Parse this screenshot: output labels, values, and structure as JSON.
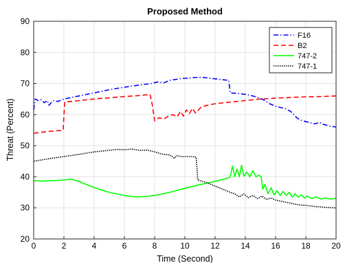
{
  "chart_data": {
    "type": "line",
    "title": "Proposed Method",
    "xlabel": "Time (Second)",
    "ylabel": "Threat (Percent)",
    "xlim": [
      0,
      20
    ],
    "ylim": [
      20,
      90
    ],
    "xticks": [
      "0",
      "2",
      "4",
      "6",
      "8",
      "10",
      "12",
      "14",
      "16",
      "18",
      "20"
    ],
    "yticks": [
      "20",
      "30",
      "40",
      "50",
      "60",
      "70",
      "80",
      "90"
    ],
    "grid": true,
    "legend_position": "top-right",
    "series": [
      {
        "name": "F16",
        "color": "#0000ff",
        "style": "dash-dot",
        "x": [
          0,
          0.1,
          0.3,
          0.5,
          0.7,
          0.9,
          1.0,
          1.3,
          1.6,
          2.0,
          2.5,
          3,
          4,
          5,
          6,
          7,
          7.8,
          8.2,
          8.6,
          9.0,
          9.4,
          9.8,
          10.2,
          10.6,
          11,
          11.5,
          12,
          12.5,
          12.9,
          13.0,
          13.5,
          14,
          14.5,
          15,
          15.3,
          15.6,
          16.0,
          16.3,
          16.6,
          16.8,
          17.0,
          17.2,
          17.4,
          17.6,
          17.8,
          18.2,
          18.6,
          18.9,
          19.2,
          19.6,
          20
        ],
        "values": [
          61.5,
          65,
          64.5,
          64.8,
          63.8,
          64.5,
          63,
          64.5,
          64.2,
          65,
          65.5,
          66,
          67,
          68,
          68.8,
          69.5,
          70,
          70.5,
          70.2,
          71,
          71.3,
          71.6,
          71.7,
          71.9,
          72,
          71.8,
          71.5,
          71.2,
          71,
          67,
          66.8,
          66.5,
          66,
          65.2,
          64.5,
          63.5,
          62.7,
          62.3,
          62,
          61.5,
          61,
          60,
          59,
          58.3,
          58,
          57.5,
          57,
          57.5,
          56.8,
          56.3,
          56
        ]
      },
      {
        "name": "B2",
        "color": "#ff0000",
        "style": "dashed",
        "x": [
          0,
          0.5,
          1,
          1.5,
          1.95,
          2.05,
          3,
          4,
          5,
          6,
          7,
          7.7,
          7.85,
          8.0,
          8.3,
          8.6,
          8.9,
          9.2,
          9.5,
          9.7,
          9.9,
          10.1,
          10.3,
          10.5,
          10.7,
          10.9,
          11.1,
          11.5,
          12,
          13,
          14,
          15,
          16,
          17,
          18,
          19,
          20
        ],
        "values": [
          54,
          54.3,
          54.6,
          54.8,
          55,
          64,
          64.5,
          65,
          65.4,
          65.8,
          66.1,
          66.5,
          63,
          58,
          59,
          58.5,
          59.5,
          60,
          59.3,
          61,
          59.5,
          61.5,
          60.3,
          62,
          60.5,
          61.5,
          62.5,
          63,
          63.5,
          64,
          64.5,
          65,
          65.3,
          65.5,
          65.7,
          65.8,
          66
        ]
      },
      {
        "name": "747-2",
        "color": "#00ff00",
        "style": "solid",
        "x": [
          0,
          0.5,
          1,
          1.5,
          2,
          2.5,
          3,
          4,
          5,
          6,
          6.8,
          7.5,
          8,
          9,
          10,
          11,
          12,
          12.8,
          13.0,
          13.15,
          13.3,
          13.45,
          13.6,
          13.75,
          13.9,
          14.1,
          14.3,
          14.5,
          14.7,
          14.9,
          15.05,
          15.15,
          15.3,
          15.5,
          15.7,
          15.9,
          16.1,
          16.3,
          16.5,
          16.7,
          16.9,
          17.1,
          17.3,
          17.5,
          17.7,
          17.9,
          18.1,
          18.4,
          18.7,
          19,
          19.3,
          19.6,
          20
        ],
        "values": [
          38.8,
          38.6,
          38.7,
          38.8,
          39,
          39.2,
          38.5,
          36.5,
          35,
          34,
          33.5,
          33.7,
          34,
          35,
          36.3,
          37.5,
          38.5,
          39.5,
          40,
          43.5,
          40,
          42.5,
          40,
          43.7,
          40.2,
          41.5,
          40,
          42,
          40,
          40.5,
          40,
          36,
          37.5,
          34.5,
          36.5,
          34.2,
          35.5,
          34,
          35.3,
          34,
          35,
          33.5,
          34.5,
          33.4,
          34.2,
          33.2,
          33.8,
          33,
          33.5,
          32.8,
          33.2,
          32.8,
          33
        ]
      },
      {
        "name": "747-1",
        "color": "#000000",
        "style": "dotted",
        "x": [
          0,
          1,
          2,
          3,
          4,
          5,
          5.5,
          6,
          6.5,
          7,
          7.5,
          8,
          8.5,
          9,
          9.3,
          9.5,
          9.7,
          10,
          10.5,
          10.75,
          10.85,
          11.5,
          12,
          12.5,
          13,
          13.3,
          13.6,
          13.9,
          14.2,
          14.5,
          14.8,
          15.1,
          15.4,
          15.7,
          16,
          16.5,
          17,
          17.5,
          18,
          18.5,
          19,
          19.5,
          20
        ],
        "values": [
          45,
          45.8,
          46.5,
          47.2,
          48,
          48.5,
          48.8,
          48.7,
          48.9,
          48.5,
          48.6,
          48,
          47.3,
          47,
          46,
          46.8,
          46.5,
          46.5,
          46.5,
          46.3,
          39,
          38,
          37,
          36,
          35,
          34.5,
          33.5,
          34.5,
          33.3,
          34,
          33,
          33.8,
          32.7,
          33.2,
          32.5,
          32,
          31.5,
          31,
          30.8,
          30.5,
          30.3,
          30.1,
          30
        ]
      }
    ]
  }
}
